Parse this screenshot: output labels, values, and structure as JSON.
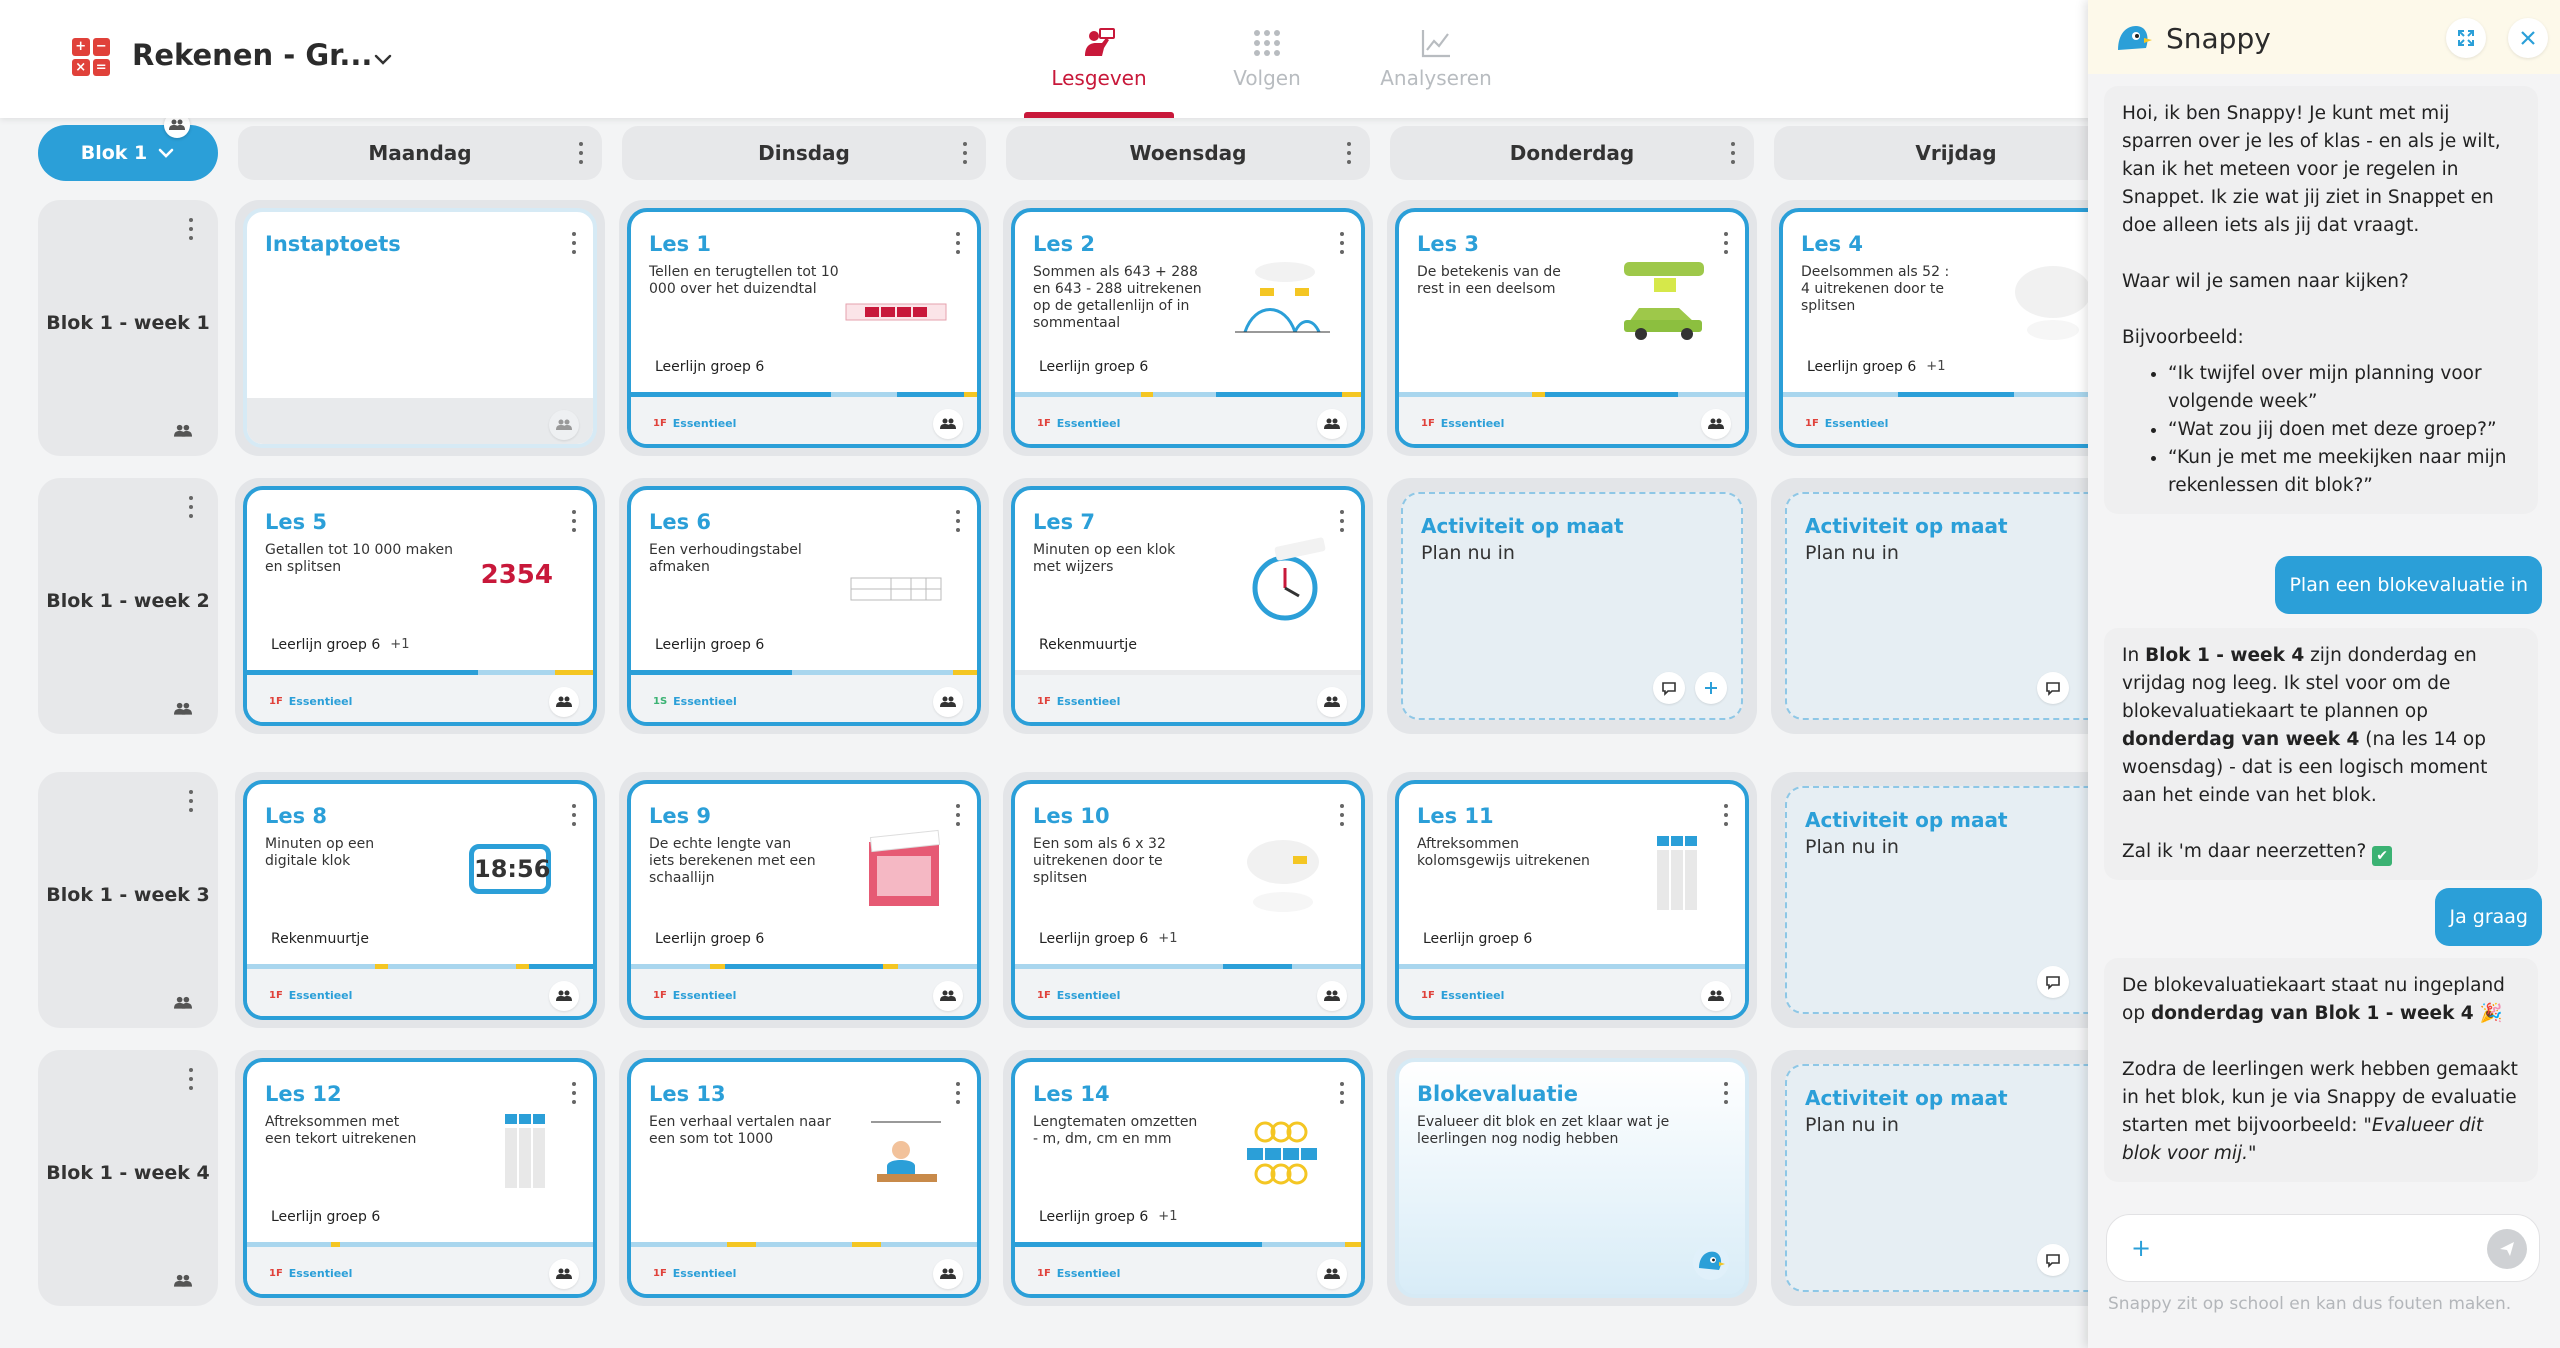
{
  "header": {
    "title": "Rekenen - Gr...",
    "tabs": [
      {
        "label": "Lesgeven",
        "active": true
      },
      {
        "label": "Volgen",
        "active": false
      },
      {
        "label": "Analyseren",
        "active": false
      }
    ]
  },
  "board": {
    "blok_button": "Blok 1",
    "days": [
      "Maandag",
      "Dinsdag",
      "Woensdag",
      "Donderdag",
      "Vrijdag"
    ],
    "weeks": [
      "Blok 1 - week 1",
      "Blok 1 - week 2",
      "Blok 1 - week 3",
      "Blok 1 - week 4"
    ],
    "essential_label": "Essentieel",
    "empty_title": "Activiteit op maat",
    "empty_sub": "Plan nu in",
    "cards": {
      "instap": {
        "title": "Instaptoets"
      },
      "les1": {
        "title": "Les 1",
        "desc": "Tellen en terugtellen tot 10 000 over het duizendtal",
        "tag": "Leerlijn groep 6",
        "level": "1F"
      },
      "les2": {
        "title": "Les 2",
        "desc": "Sommen als 643 + 288 en 643 - 288 uitrekenen op de getallenlijn of in sommentaal",
        "tag": "Leerlijn groep 6",
        "level": "1F"
      },
      "les3": {
        "title": "Les 3",
        "desc": "De betekenis van de rest in een deelsom",
        "level": "1F"
      },
      "les4": {
        "title": "Les 4",
        "desc": "Deelsommen als 52 : 4 uitrekenen door te splitsen",
        "tag": "Leerlijn groep 6",
        "extra": "+1",
        "level": "1F"
      },
      "les5": {
        "title": "Les 5",
        "desc": "Getallen tot 10 000 maken en splitsen",
        "tag": "Leerlijn groep 6",
        "extra": "+1",
        "level": "1F",
        "big_number": "2354"
      },
      "les6": {
        "title": "Les 6",
        "desc": "Een verhoudingstabel afmaken",
        "tag": "Leerlijn groep 6",
        "level": "1S"
      },
      "les7": {
        "title": "Les 7",
        "desc": "Minuten op een klok met wijzers",
        "tag": "Rekenmuurtje",
        "level": "1F"
      },
      "les8": {
        "title": "Les 8",
        "desc": "Minuten op een digitale klok",
        "tag": "Rekenmuurtje",
        "level": "1F",
        "clock": "18:56"
      },
      "les9": {
        "title": "Les 9",
        "desc": "De echte lengte van iets berekenen met een schaallijn",
        "tag": "Leerlijn groep 6",
        "level": "1F"
      },
      "les10": {
        "title": "Les 10",
        "desc": "Een som als 6 x 32 uitrekenen door te splitsen",
        "tag": "Leerlijn groep 6",
        "extra": "+1",
        "level": "1F"
      },
      "les11": {
        "title": "Les 11",
        "desc": "Aftreksommen kolomsgewijs uitrekenen",
        "tag": "Leerlijn groep 6",
        "level": "1F"
      },
      "les12": {
        "title": "Les 12",
        "desc": "Aftreksommen met een tekort uitrekenen",
        "tag": "Leerlijn groep 6",
        "level": "1F"
      },
      "les13": {
        "title": "Les 13",
        "desc": "Een verhaal vertalen naar een som tot 1000",
        "level": "1F"
      },
      "les14": {
        "title": "Les 14",
        "desc": "Lengtematen omzetten - m, dm, cm en mm",
        "tag": "Leerlijn groep 6",
        "extra": "+1",
        "level": "1F"
      },
      "bloke": {
        "title": "Blokevaluatie",
        "desc": "Evalueer dit blok en zet klaar wat je leerlingen nog nodig hebben"
      }
    }
  },
  "chat": {
    "title": "Snappy",
    "m1": {
      "p1": "Hoi, ik ben Snappy! Je kunt met mij sparren over je les of klas - en als je wilt, kan ik het meteen voor je regelen in Snappet. Ik zie wat jij ziet in Snappet en doe alleen iets als jij dat vraagt.",
      "p2": "Waar wil je samen naar kijken?",
      "p3": "Bijvoorbeeld:",
      "b1": "“Ik twijfel over mijn planning voor volgende week”",
      "b2": "“Wat zou jij doen met deze groep?”",
      "b3": "“Kun je met me meekijken naar mijn rekenlessen dit blok?”"
    },
    "u1": "Plan een blokevaluatie in",
    "m2": {
      "t1": "In ",
      "b1": "Blok 1 - week 4",
      "t2": " zijn donderdag en vrijdag nog leeg. Ik stel voor om de blokevaluatiekaart te plannen op ",
      "b2": "donderdag van week 4",
      "t3": " (na les 14 op woensdag) - dat is een logisch moment aan het einde van het blok.",
      "q": "Zal ik 'm daar neerzetten?",
      "check": "✔"
    },
    "u2": "Ja graag",
    "m3": {
      "t1": "De blokevaluatiekaart staat nu ingepland op ",
      "b1": "donderdag van Blok 1 - week 4",
      "emoji": "🎉",
      "t2": "Zodra de leerlingen werk hebben gemaakt in het blok, kun je via Snappy de evaluatie starten met bijvoorbeeld: ",
      "i1": "\"Evalueer dit blok voor mij.\""
    },
    "input_placeholder": "",
    "disclaimer": "Snappy zit op school en kan dus fouten maken."
  }
}
